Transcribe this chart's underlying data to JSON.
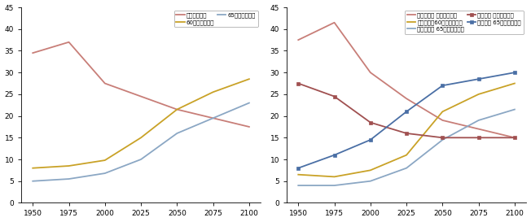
{
  "x": [
    1950,
    1975,
    2000,
    2025,
    2050,
    2075,
    2100
  ],
  "left": {
    "少年儿童人口": [
      34.5,
      37.0,
      27.5,
      24.5,
      21.5,
      19.5,
      17.5
    ],
    "60岁及以上人口": [
      8.0,
      8.5,
      9.8,
      15.0,
      21.5,
      25.5,
      28.5
    ],
    "65岁及以上人口": [
      5.0,
      5.5,
      6.8,
      10.0,
      16.0,
      19.5,
      23.0
    ]
  },
  "left_colors": {
    "少年儿童人口": "#C87E78",
    "60岁及以上人口": "#C9A227",
    "65岁及以上人口": "#8BA7C4"
  },
  "left_labels": [
    "少年儿童人口",
    "60岁及以上人口",
    "65岁及以上人口"
  ],
  "right": {
    "发展中国家 少年儿童人口": [
      37.5,
      41.5,
      30.0,
      24.0,
      19.0,
      17.0,
      15.0
    ],
    "发展中国家60岁及以上人口": [
      6.5,
      6.0,
      7.5,
      11.0,
      21.0,
      25.0,
      27.5
    ],
    "发展中国家 65岁及以上人口": [
      4.0,
      4.0,
      5.0,
      8.0,
      14.5,
      19.0,
      21.5
    ],
    "发达国家 少年儿童人口": [
      27.5,
      24.5,
      18.5,
      16.0,
      15.0,
      15.0,
      15.0
    ],
    "发达国家 65岁及以上人口": [
      8.0,
      11.0,
      14.5,
      21.0,
      27.0,
      28.5,
      30.0
    ]
  },
  "right_colors": {
    "发展中国家 少年儿童人口": "#C87E78",
    "发展中国家60岁及以上人口": "#C9A227",
    "发展中国家 65岁及以上人口": "#8BA7C4",
    "发达国家 少年儿童人口": "#A05050",
    "发达国家 65岁及以上人口": "#4A6FA5"
  },
  "right_markers": {
    "发展中国家 少年儿童人口": null,
    "发展中国家60岁及以上人口": null,
    "发展中国家 65岁及以上人口": null,
    "发达国家 少年儿童人口": "s",
    "发达国家 65岁及以上人口": "s"
  },
  "right_labels_order": [
    "发展中国家 少年儿童人口",
    "发展中国家60岁及以上人口",
    "发展中国家 65岁及以上人口",
    "发达国家 少年儿童人口",
    "发达国家 65岁及以上人口"
  ],
  "ylim": [
    0,
    45
  ],
  "yticks": [
    0,
    5,
    10,
    15,
    20,
    25,
    30,
    35,
    40,
    45
  ],
  "xticks": [
    1950,
    1975,
    2000,
    2025,
    2050,
    2075,
    2100
  ],
  "xlim": [
    1942,
    2108
  ],
  "tick_fontsize": 6.5,
  "legend_fontsize": 5.0,
  "linewidth": 1.3
}
